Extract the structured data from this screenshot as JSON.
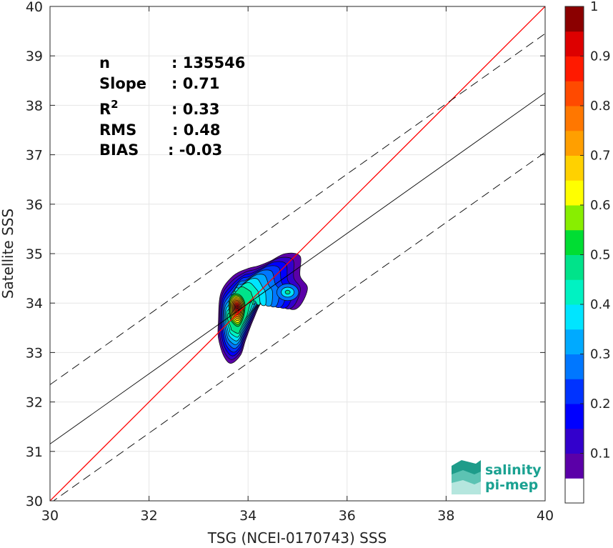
{
  "chart_data": {
    "type": "contour",
    "xlabel": "TSG (NCEI-0170743) SSS",
    "ylabel": "Satellite SSS",
    "xlim": [
      30,
      40
    ],
    "ylim": [
      30,
      40
    ],
    "xticks": [
      "30",
      "32",
      "34",
      "36",
      "38",
      "40"
    ],
    "yticks": [
      "30",
      "31",
      "32",
      "33",
      "34",
      "35",
      "36",
      "37",
      "38",
      "39",
      "40"
    ],
    "grid": true,
    "stats": [
      {
        "label": "n",
        "value": ": 135546"
      },
      {
        "label": "Slope",
        "value": ": 0.71"
      },
      {
        "label": "R",
        "sup": "2",
        "value": ": 0.33"
      },
      {
        "label": "RMS",
        "value": ": 0.48"
      },
      {
        "label": "BIAS",
        "value": ": -0.03"
      }
    ],
    "lines": {
      "identity": {
        "color": "#ff0000",
        "p1": [
          30,
          30
        ],
        "p2": [
          40,
          40
        ]
      },
      "regression": {
        "color": "#000000",
        "slope": 0.71,
        "intercept_at_30": 31.15,
        "y_at_40": 38.25
      },
      "upper_dashed": {
        "color": "#000000",
        "dash": true,
        "y_at_30": 32.35,
        "y_at_40": 39.45
      },
      "lower_dashed": {
        "color": "#000000",
        "dash": true,
        "y_at_30": 29.95,
        "y_at_40": 37.05
      }
    },
    "density_peaks": [
      {
        "x": 33.78,
        "y": 33.92,
        "peak": 1.0
      },
      {
        "x": 34.8,
        "y": 34.22,
        "peak": 0.38
      }
    ],
    "colorbar": {
      "range": [
        0,
        1
      ],
      "ticks": [
        "0.1",
        "0.2",
        "0.3",
        "0.4",
        "0.5",
        "0.6",
        "0.7",
        "0.8",
        "0.9",
        "1"
      ],
      "levels": [
        {
          "from": 0.05,
          "to": 0.1,
          "color": "#5b00a8"
        },
        {
          "from": 0.1,
          "to": 0.15,
          "color": "#3300cc"
        },
        {
          "from": 0.15,
          "to": 0.2,
          "color": "#0000ff"
        },
        {
          "from": 0.2,
          "to": 0.25,
          "color": "#0033ff"
        },
        {
          "from": 0.25,
          "to": 0.3,
          "color": "#0077ff"
        },
        {
          "from": 0.3,
          "to": 0.35,
          "color": "#00aaff"
        },
        {
          "from": 0.35,
          "to": 0.4,
          "color": "#00e5ff"
        },
        {
          "from": 0.4,
          "to": 0.45,
          "color": "#00f2c2"
        },
        {
          "from": 0.45,
          "to": 0.5,
          "color": "#00e38a"
        },
        {
          "from": 0.5,
          "to": 0.55,
          "color": "#00dd33"
        },
        {
          "from": 0.55,
          "to": 0.6,
          "color": "#88ee00"
        },
        {
          "from": 0.6,
          "to": 0.65,
          "color": "#ffff00"
        },
        {
          "from": 0.65,
          "to": 0.7,
          "color": "#ffd100"
        },
        {
          "from": 0.7,
          "to": 0.75,
          "color": "#ff9f00"
        },
        {
          "from": 0.75,
          "to": 0.8,
          "color": "#ff7700"
        },
        {
          "from": 0.8,
          "to": 0.85,
          "color": "#ff4a00"
        },
        {
          "from": 0.85,
          "to": 0.9,
          "color": "#ff1a00"
        },
        {
          "from": 0.9,
          "to": 0.95,
          "color": "#dd0000"
        },
        {
          "from": 0.95,
          "to": 1.0,
          "color": "#8b0000"
        }
      ]
    }
  },
  "logo": {
    "line1": "salinity",
    "line2": "pi-mep",
    "color": "#1aa191"
  }
}
